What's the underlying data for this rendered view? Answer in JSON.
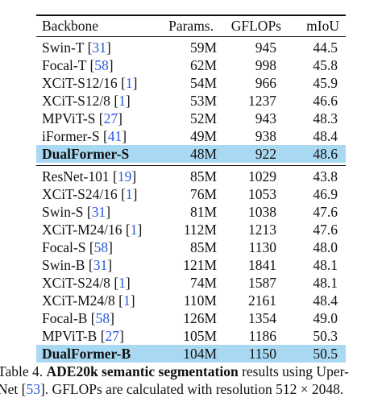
{
  "table": {
    "headers": [
      "Backbone",
      "Params.",
      "GFLOPs",
      "mIoU"
    ],
    "group1": [
      {
        "name": "Swin-T",
        "ref": "31",
        "params": "59M",
        "gflops": "945",
        "miou": "44.5"
      },
      {
        "name": "Focal-T",
        "ref": "58",
        "params": "62M",
        "gflops": "998",
        "miou": "45.8"
      },
      {
        "name": "XCiT-S12/16",
        "ref": "1",
        "params": "54M",
        "gflops": "966",
        "miou": "45.9"
      },
      {
        "name": "XCiT-S12/8",
        "ref": "1",
        "params": "53M",
        "gflops": "1237",
        "miou": "46.6"
      },
      {
        "name": "MPViT-S",
        "ref": "27",
        "params": "52M",
        "gflops": "943",
        "miou": "48.3"
      },
      {
        "name": "iFormer-S",
        "ref": "41",
        "params": "49M",
        "gflops": "938",
        "miou": "48.4"
      },
      {
        "name": "DualFormer-S",
        "ref": "",
        "params": "48M",
        "gflops": "922",
        "miou": "48.6",
        "highlight": true
      }
    ],
    "group2": [
      {
        "name": "ResNet-101",
        "ref": "19",
        "params": "85M",
        "gflops": "1029",
        "miou": "43.8"
      },
      {
        "name": "XCiT-S24/16",
        "ref": "1",
        "params": "76M",
        "gflops": "1053",
        "miou": "46.9"
      },
      {
        "name": "Swin-S",
        "ref": "31",
        "params": "81M",
        "gflops": "1038",
        "miou": "47.6"
      },
      {
        "name": "XCiT-M24/16",
        "ref": "1",
        "params": "112M",
        "gflops": "1213",
        "miou": "47.6"
      },
      {
        "name": "Focal-S",
        "ref": "58",
        "params": "85M",
        "gflops": "1130",
        "miou": "48.0"
      },
      {
        "name": "Swin-B",
        "ref": "31",
        "params": "121M",
        "gflops": "1841",
        "miou": "48.1"
      },
      {
        "name": "XCiT-S24/8",
        "ref": "1",
        "params": "74M",
        "gflops": "1587",
        "miou": "48.1"
      },
      {
        "name": "XCiT-M24/8",
        "ref": "1",
        "params": "110M",
        "gflops": "2161",
        "miou": "48.4"
      },
      {
        "name": "Focal-B",
        "ref": "58",
        "params": "126M",
        "gflops": "1354",
        "miou": "49.0"
      },
      {
        "name": "MPViT-B",
        "ref": "27",
        "params": "105M",
        "gflops": "1186",
        "miou": "50.3"
      },
      {
        "name": "DualFormer-B",
        "ref": "",
        "params": "104M",
        "gflops": "1150",
        "miou": "50.5",
        "highlight": true
      }
    ]
  },
  "caption": {
    "label": "Table 4.",
    "bold_text": "ADE20k semantic segmentation",
    "rest_line1": "results using Uper-",
    "line2_prefix": "Net [",
    "line2_ref": "53",
    "line2_rest": "]. GFLOPs are calculated with resolution 512 × 2048."
  },
  "colors": {
    "highlight": "#a9d9f2",
    "reference": "#2a5bd7"
  }
}
